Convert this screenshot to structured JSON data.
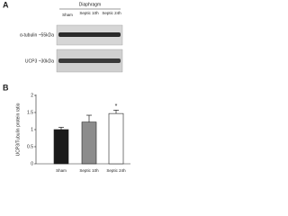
{
  "panel_a": {
    "label": "A",
    "title": "Diaphragm",
    "lanes": [
      "Sham",
      "Septic 10h",
      "Septic 24h"
    ],
    "rows": [
      "α-tubulin ~55kDa",
      "UCP3 ~30kDa"
    ]
  },
  "chart_data": {
    "type": "bar",
    "label": "B",
    "ylabel": "UCP3/Tubulin protein ratio",
    "categories": [
      "Sham",
      "Septic 10h",
      "Septic 24h"
    ],
    "values": [
      1.0,
      1.22,
      1.47
    ],
    "errors": [
      0.07,
      0.2,
      0.1
    ],
    "colors": [
      "#1a1a1a",
      "#8c8c8c",
      "#ffffff"
    ],
    "annotation": "*",
    "ylim": [
      0,
      2
    ],
    "yticks": [
      0,
      0.5,
      1,
      1.5,
      2
    ],
    "grid": false
  }
}
